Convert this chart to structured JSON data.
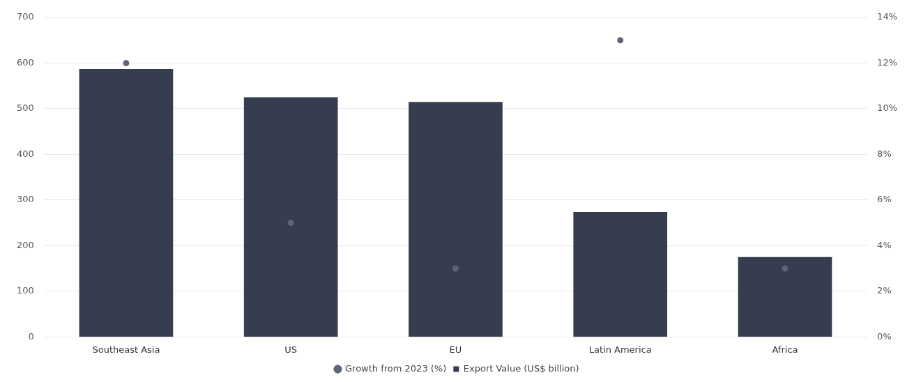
{
  "chart_data": {
    "type": "bar",
    "categories": [
      "Southeast Asia",
      "US",
      "EU",
      "Latin America",
      "Africa"
    ],
    "series": [
      {
        "name": "Export Value (US$ billion)",
        "color": "#353d4f",
        "values": [
          587,
          525,
          515,
          274,
          175
        ]
      },
      {
        "name": "Growth from 2023 (%)",
        "type": "scatter",
        "axis": "y2",
        "color": "#5d6475",
        "values": [
          12,
          5,
          3,
          13,
          3
        ]
      }
    ],
    "ylim": [
      0,
      700
    ],
    "yticks": [
      0,
      100,
      200,
      300,
      400,
      500,
      600,
      700
    ],
    "y2lim": [
      0,
      14
    ],
    "y2ticks": [
      {
        "value": 0,
        "label": "0%"
      },
      {
        "value": 2,
        "label": "2%"
      },
      {
        "value": 4,
        "label": "4%"
      },
      {
        "value": 6,
        "label": "6%"
      },
      {
        "value": 8,
        "label": "8%"
      },
      {
        "value": 10,
        "label": "10%"
      },
      {
        "value": 12,
        "label": "12%"
      },
      {
        "value": 14,
        "label": "14%"
      }
    ],
    "grid": "y",
    "legend": "bottom",
    "marker": "circle"
  }
}
